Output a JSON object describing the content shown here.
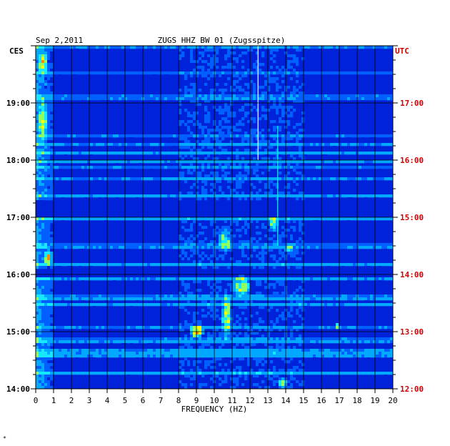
{
  "chart_data": {
    "type": "heatmap",
    "header": {
      "date": "Sep 2,2011",
      "station": "ZUGS HHZ BW 01 (Zugsspitze)"
    },
    "left_timezone": "CES",
    "right_timezone": "UTC",
    "xlabel": "FREQUENCY (HZ)",
    "x_ticks": [
      "0",
      "1",
      "2",
      "3",
      "4",
      "5",
      "6",
      "7",
      "8",
      "9",
      "10",
      "11",
      "12",
      "13",
      "14",
      "15",
      "16",
      "17",
      "18",
      "19",
      "20"
    ],
    "xlim": [
      0,
      20
    ],
    "y_ticks_left": [
      {
        "hours_from_top": 6.0,
        "label": "14:00"
      },
      {
        "hours_from_top": 5.0,
        "label": "15:00"
      },
      {
        "hours_from_top": 4.0,
        "label": "16:00"
      },
      {
        "hours_from_top": 3.0,
        "label": "17:00"
      },
      {
        "hours_from_top": 2.0,
        "label": "18:00"
      },
      {
        "hours_from_top": 1.0,
        "label": "19:00"
      }
    ],
    "y_ticks_right": [
      {
        "hours_from_top": 6.0,
        "label": "12:00"
      },
      {
        "hours_from_top": 5.0,
        "label": "13:00"
      },
      {
        "hours_from_top": 4.0,
        "label": "14:00"
      },
      {
        "hours_from_top": 3.0,
        "label": "15:00"
      },
      {
        "hours_from_top": 2.0,
        "label": "16:00"
      },
      {
        "hours_from_top": 1.0,
        "label": "17:00"
      }
    ],
    "time_span_hours": 6.0,
    "grid": true,
    "colormap": [
      "#00009a",
      "#0022d8",
      "#0060ff",
      "#00a8ff",
      "#18e8ff",
      "#90ff60",
      "#ffff00",
      "#ff8c00",
      "#d00000"
    ],
    "hotspots": [
      {
        "freq": 0.4,
        "hours_from_top": 0.3,
        "width": 0.6,
        "height": 0.5,
        "level": 0.45
      },
      {
        "freq": 0.4,
        "hours_from_top": 1.3,
        "width": 0.6,
        "height": 0.9,
        "level": 0.4
      },
      {
        "freq": 0.7,
        "hours_from_top": 3.7,
        "width": 0.5,
        "height": 0.3,
        "level": 0.6
      },
      {
        "freq": 9.0,
        "hours_from_top": 5.0,
        "width": 0.9,
        "height": 0.25,
        "level": 0.7
      },
      {
        "freq": 10.7,
        "hours_from_top": 4.75,
        "width": 0.6,
        "height": 0.9,
        "level": 0.55
      },
      {
        "freq": 10.6,
        "hours_from_top": 3.4,
        "width": 0.8,
        "height": 0.5,
        "level": 0.45
      },
      {
        "freq": 11.5,
        "hours_from_top": 4.2,
        "width": 1.2,
        "height": 0.4,
        "level": 0.5
      },
      {
        "freq": 13.3,
        "hours_from_top": 3.1,
        "width": 0.6,
        "height": 0.3,
        "level": 0.45
      },
      {
        "freq": 14.2,
        "hours_from_top": 3.55,
        "width": 0.5,
        "height": 0.2,
        "level": 0.45
      },
      {
        "freq": 13.8,
        "hours_from_top": 5.9,
        "width": 0.6,
        "height": 0.2,
        "level": 0.5
      },
      {
        "freq": 16.9,
        "hours_from_top": 4.9,
        "width": 0.3,
        "height": 0.15,
        "level": 0.45
      }
    ],
    "vertical_lines": [
      {
        "freq": 12.45,
        "from_hours": 0.0,
        "to_hours": 2.0,
        "color": "#ffffff"
      },
      {
        "freq": 13.55,
        "from_hours": 1.4,
        "to_hours": 3.5,
        "color": "#18e8ff"
      }
    ],
    "dark_band_hours": [
      [
        2.7,
        3.0
      ],
      [
        3.9,
        4.05
      ]
    ]
  },
  "footer_mark": "*"
}
